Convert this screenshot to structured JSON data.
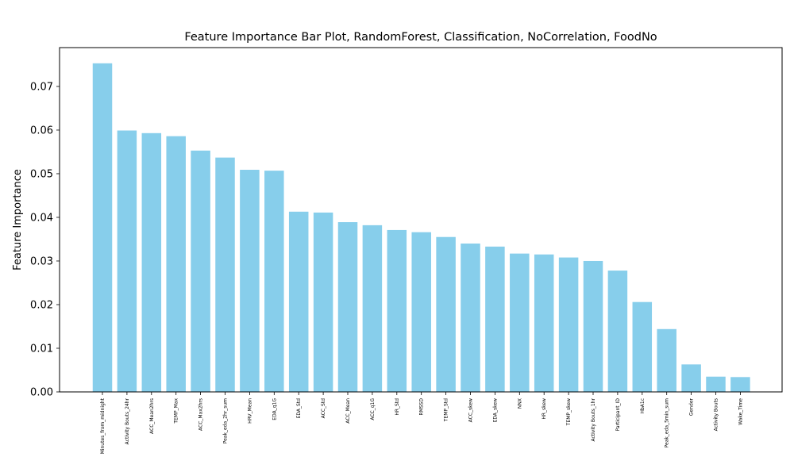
{
  "chart_data": {
    "type": "bar",
    "title": "Feature Importance Bar Plot, RandomForest, Classification, NoCorrelation, FoodNo",
    "xlabel": "",
    "ylabel": "Feature Importance",
    "ylim": [
      0,
      0.0789
    ],
    "yticks": [
      0.0,
      0.01,
      0.02,
      0.03,
      0.04,
      0.05,
      0.06,
      0.07
    ],
    "ytick_labels": [
      "0.00",
      "0.01",
      "0.02",
      "0.03",
      "0.04",
      "0.05",
      "0.06",
      "0.07"
    ],
    "bar_color": "#87CEEB",
    "grid": false,
    "categories": [
      "Minutes_from_midnight",
      "Activity Bouts_24hr",
      "ACC_Mean2hrs",
      "TEMP_Max",
      "ACC_Max2hrs",
      "Peak_eda_2hr_sum",
      "HRV_Mean",
      "EDA_q1G",
      "EDA_Std",
      "ACC_Std",
      "ACC_Mean",
      "ACC_q1G",
      "HR_Std",
      "RMSSD",
      "TEMP_Std",
      "ACC_skew",
      "EDA_skew",
      "NNX",
      "HR_skew",
      "TEMP_skew",
      "Activity Bouts_1hr",
      "Participant_ID",
      "HbA1c",
      "Peak_eda_5min_sum",
      "Gender",
      "Activity Bouts",
      "Wake_Time"
    ],
    "values": [
      0.0753,
      0.0599,
      0.0593,
      0.0586,
      0.0553,
      0.0537,
      0.0509,
      0.0507,
      0.0413,
      0.0411,
      0.0389,
      0.0382,
      0.0371,
      0.0366,
      0.0355,
      0.034,
      0.0333,
      0.0317,
      0.0315,
      0.0308,
      0.03,
      0.0278,
      0.0206,
      0.0144,
      0.0063,
      0.0035,
      0.0034
    ]
  }
}
